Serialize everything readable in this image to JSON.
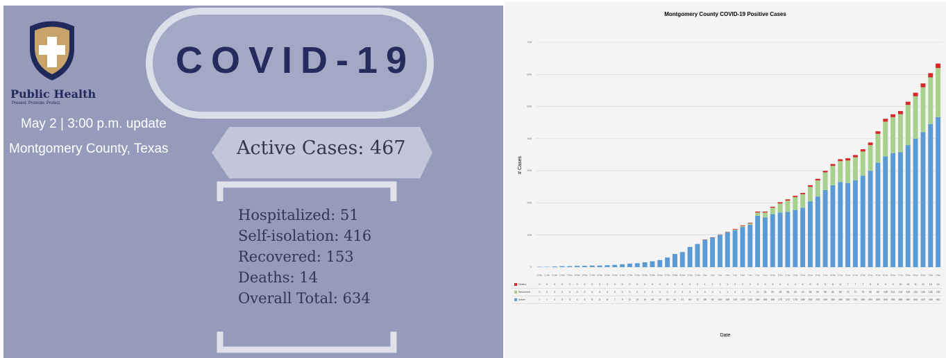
{
  "left_panel": {
    "logo_title": "Public Health",
    "logo_tagline": "Prevent. Promote. Protect.",
    "headline": "COVID-19",
    "update": "May 2 | 3:00 p.m. update",
    "location": "Montgomery County, Texas",
    "active_cases": "Active Cases: 467",
    "stats": [
      "Hospitalized: 51",
      "Self-isolation: 416",
      "Recovered: 153",
      "Deaths: 14",
      "Overall Total: 634"
    ]
  },
  "chart_data": {
    "type": "stacked-bar",
    "title": "Montgomery County COVID-19 Positive Cases",
    "y_label": "# Cases",
    "x_label": "Date",
    "categories": [
      "10 Mar",
      "11 Mar",
      "12 Mar",
      "13 Mar",
      "14 Mar",
      "15 Mar",
      "16 Mar",
      "17 Mar",
      "18 Mar",
      "19 Mar",
      "20 Mar",
      "21 Mar",
      "22 Mar",
      "23 Mar",
      "24 Mar",
      "25 Mar",
      "26 Mar",
      "27 Mar",
      "28 Mar",
      "29 Mar",
      "30 Mar",
      "31 Mar",
      "1 Apr",
      "2 Apr",
      "3 Apr",
      "4 Apr",
      "5 Apr",
      "6 Apr",
      "7 Apr",
      "8 Apr",
      "9 Apr",
      "10 Apr",
      "11 Apr",
      "12 Apr",
      "13 Apr",
      "14 Apr",
      "15 Apr",
      "16 Apr",
      "17 Apr",
      "18 Apr",
      "19 Apr",
      "20 Apr",
      "21 Apr",
      "22 Apr",
      "23 Apr",
      "24 Apr",
      "25 Apr",
      "26 Apr",
      "27 Apr",
      "28 Apr",
      "29 Apr",
      "30 Apr",
      "1 May",
      "2 May"
    ],
    "series": [
      {
        "name": "Deaths",
        "color": "#d62a2a",
        "values": [
          0,
          0,
          0,
          0,
          0,
          0,
          0,
          0,
          0,
          0,
          0,
          0,
          0,
          0,
          0,
          0,
          0,
          0,
          0,
          0,
          0,
          0,
          1,
          1,
          1,
          1,
          2,
          2,
          2,
          3,
          3,
          3,
          4,
          4,
          4,
          4,
          5,
          5,
          5,
          6,
          6,
          7,
          7,
          7,
          8,
          8,
          9,
          9,
          10,
          10,
          11,
          12,
          13,
          14
        ]
      },
      {
        "name": "Recovered",
        "color": "#a9d18e",
        "values": [
          0,
          0,
          0,
          0,
          0,
          0,
          0,
          0,
          0,
          0,
          0,
          0,
          0,
          0,
          0,
          0,
          0,
          0,
          0,
          0,
          0,
          0,
          0,
          0,
          1,
          1,
          2,
          3,
          4,
          10,
          15,
          20,
          28,
          35,
          40,
          42,
          45,
          50,
          55,
          60,
          65,
          70,
          72,
          75,
          80,
          90,
          108,
          112,
          118,
          125,
          132,
          140,
          146,
          153
        ]
      },
      {
        "name": "Active",
        "color": "#5b9bd5",
        "values": [
          1,
          1,
          2,
          3,
          3,
          4,
          4,
          5,
          5,
          6,
          7,
          9,
          11,
          12,
          15,
          18,
          22,
          30,
          41,
          47,
          63,
          72,
          85,
          92,
          100,
          108,
          115,
          125,
          132,
          160,
          155,
          165,
          170,
          172,
          178,
          185,
          205,
          220,
          240,
          255,
          265,
          262,
          270,
          285,
          300,
          325,
          345,
          355,
          358,
          380,
          400,
          420,
          445,
          467
        ]
      }
    ],
    "ylim": [
      0,
      700
    ],
    "yticks": [
      0,
      100,
      200,
      300,
      400,
      500,
      600,
      700
    ],
    "grid": true
  }
}
